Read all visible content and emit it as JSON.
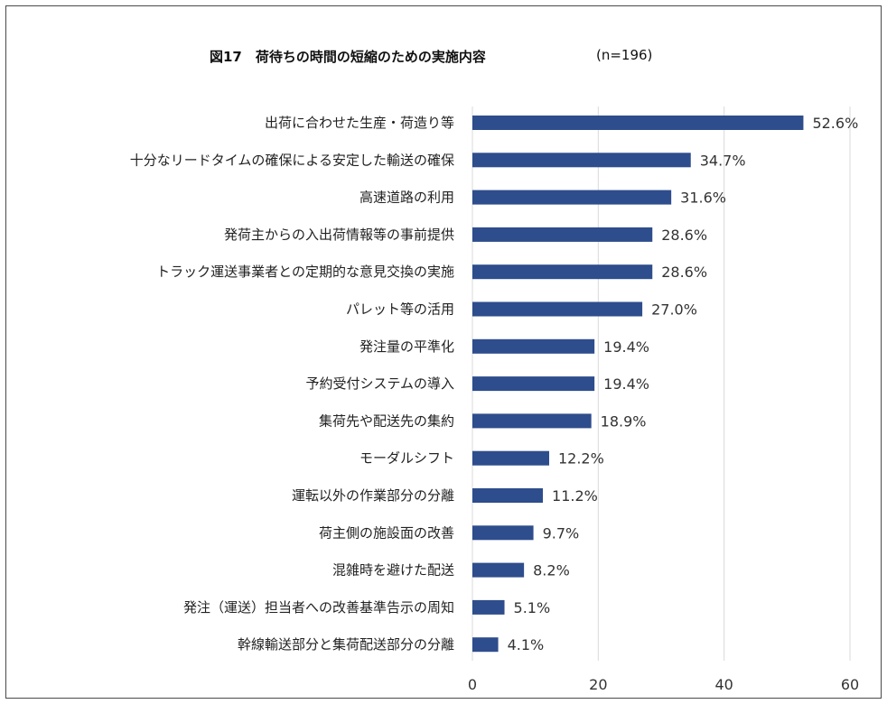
{
  "chart_data": {
    "type": "bar",
    "orientation": "horizontal",
    "title": "図17　荷待ちの時間の短縮のための実施内容",
    "subtitle": "(n=196)",
    "categories": [
      "出荷に合わせた生産・荷造り等",
      "十分なリードタイムの確保による安定した輸送の確保",
      "高速道路の利用",
      "発荷主からの入出荷情報等の事前提供",
      "トラック運送事業者との定期的な意見交換の実施",
      "パレット等の活用",
      "発注量の平準化",
      "予約受付システムの導入",
      "集荷先や配送先の集約",
      "モーダルシフト",
      "運転以外の作業部分の分離",
      "荷主側の施設面の改善",
      "混雑時を避けた配送",
      "発注（運送）担当者への改善基準告示の周知",
      "幹線輸送部分と集荷配送部分の分離"
    ],
    "values": [
      52.6,
      34.7,
      31.6,
      28.6,
      28.6,
      27.0,
      19.4,
      19.4,
      18.9,
      12.2,
      11.2,
      9.7,
      8.2,
      5.1,
      4.1
    ],
    "value_labels": [
      "52.6%",
      "34.7%",
      "31.6%",
      "28.6%",
      "28.6%",
      "27.0%",
      "19.4%",
      "19.4%",
      "18.9%",
      "12.2%",
      "11.2%",
      "9.7%",
      "8.2%",
      "5.1%",
      "4.1%"
    ],
    "xlim": [
      0,
      60
    ],
    "xticks": [
      "0",
      "20",
      "40",
      "60"
    ],
    "grid": true,
    "bar_color": "#2e4d8c",
    "grid_color": "#d9d9d9"
  }
}
